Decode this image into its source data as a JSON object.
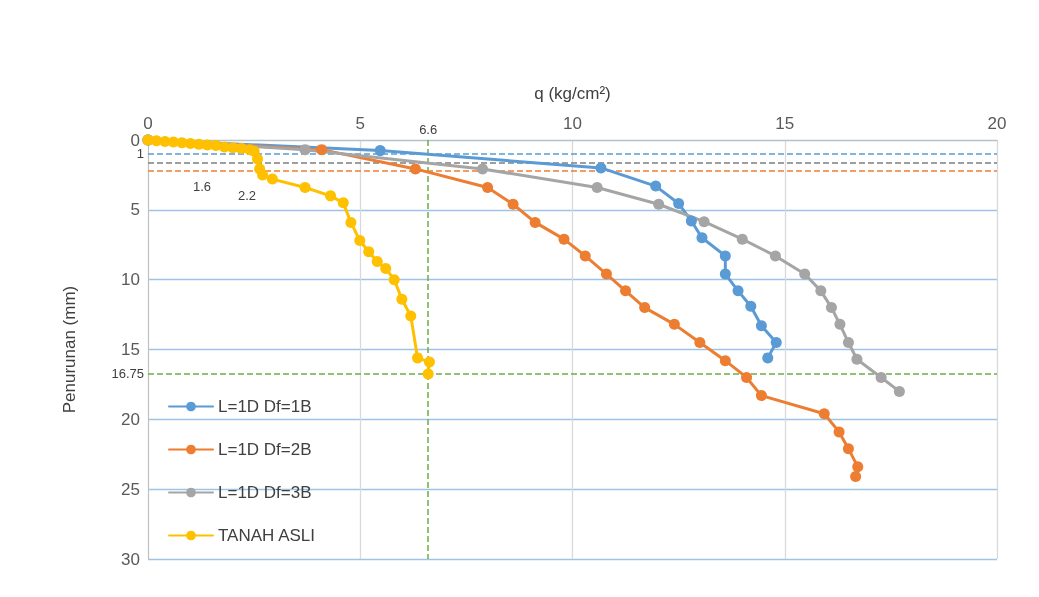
{
  "chart_data": {
    "type": "line",
    "xlabel": "q (kg/cm²)",
    "ylabel": "Penurunan (mm)",
    "xlim": [
      0,
      20
    ],
    "xticks": [
      0,
      5,
      10,
      15,
      20
    ],
    "ylim": [
      30,
      0
    ],
    "yticks": [
      0,
      5,
      10,
      15,
      20,
      25,
      30
    ],
    "grid": true,
    "legend": "bottom left",
    "marker": "circle",
    "line_style": "solid",
    "series": [
      {
        "name": "L=1D Df=1B",
        "color": "#5b9bd5",
        "x": [
          0,
          5.47,
          10.67,
          11.96,
          12.5,
          12.8,
          13.05,
          13.6,
          13.6,
          13.9,
          14.2,
          14.45,
          14.8,
          14.6
        ],
        "values": [
          0,
          0.76,
          2.0,
          3.3,
          4.55,
          5.8,
          7.0,
          8.3,
          9.6,
          10.8,
          11.9,
          13.3,
          14.5,
          15.6
        ]
      },
      {
        "name": "L=1D Df=2B",
        "color": "#ed7d31",
        "x": [
          0,
          4.09,
          6.3,
          8.0,
          8.6,
          9.12,
          9.8,
          10.3,
          10.8,
          11.25,
          11.7,
          12.4,
          13.0,
          13.6,
          14.1,
          14.45,
          15.93,
          16.28,
          16.5,
          16.72,
          16.67
        ],
        "values": [
          0,
          0.69,
          2.07,
          3.4,
          4.6,
          5.9,
          7.1,
          8.3,
          9.6,
          10.8,
          12.0,
          13.2,
          14.5,
          15.8,
          17.0,
          18.3,
          19.6,
          20.9,
          22.1,
          23.4,
          24.1
        ]
      },
      {
        "name": "L=1D Df=3B",
        "color": "#a5a5a5",
        "x": [
          0,
          3.7,
          7.88,
          10.58,
          12.03,
          13.1,
          14.0,
          14.78,
          15.47,
          15.85,
          16.1,
          16.3,
          16.5,
          16.7,
          17.27,
          17.7
        ],
        "values": [
          0,
          0.69,
          2.07,
          3.4,
          4.6,
          5.85,
          7.1,
          8.3,
          9.6,
          10.8,
          12.0,
          13.2,
          14.5,
          15.7,
          17.0,
          18.0
        ]
      },
      {
        "name": "TANAH ASLI",
        "color": "#ffc000",
        "x": [
          0,
          0.2,
          0.4,
          0.6,
          0.8,
          1.0,
          1.2,
          1.4,
          1.6,
          1.8,
          2.0,
          2.2,
          2.4,
          2.5,
          2.58,
          2.63,
          2.7,
          2.93,
          3.7,
          4.3,
          4.6,
          4.78,
          4.99,
          5.2,
          5.4,
          5.6,
          5.8,
          5.98,
          6.19,
          6.35,
          6.63,
          6.6
        ],
        "values": [
          0,
          0.05,
          0.1,
          0.15,
          0.2,
          0.25,
          0.3,
          0.35,
          0.4,
          0.5,
          0.55,
          0.6,
          0.7,
          0.8,
          1.36,
          2.07,
          2.5,
          2.8,
          3.4,
          4.0,
          4.5,
          5.9,
          7.2,
          8.0,
          8.7,
          9.2,
          10.0,
          11.4,
          12.6,
          15.6,
          15.9,
          16.75
        ]
      }
    ],
    "ref_lines": [
      {
        "axis": "y",
        "value": 1,
        "label": "1",
        "color": "#5b9bd5",
        "line_style": "dashed"
      },
      {
        "axis": "y",
        "value": 1.6,
        "label": "1.6",
        "color": "#7f7f7f",
        "line_style": "dashed"
      },
      {
        "axis": "y",
        "value": 2.2,
        "label": "2.2",
        "color": "#ed7d31",
        "line_style": "dashed"
      },
      {
        "axis": "x",
        "value": 6.6,
        "label": "6.6",
        "color": "#70ad47",
        "line_style": "dashed"
      },
      {
        "axis": "y",
        "value": 16.75,
        "label": "16.75",
        "color": "#70ad47",
        "line_style": "dashed"
      }
    ]
  }
}
